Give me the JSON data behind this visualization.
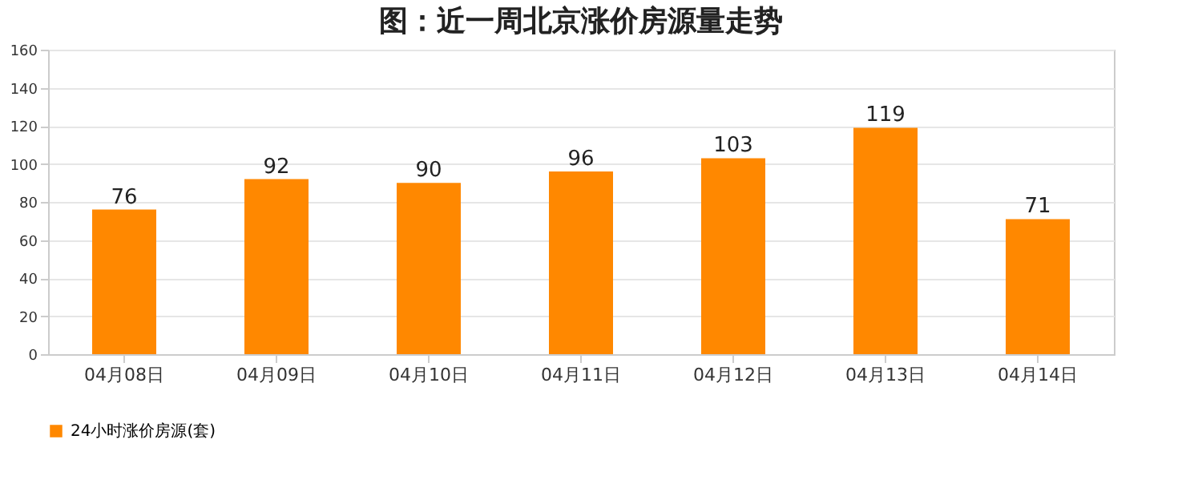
{
  "chart_data": {
    "type": "bar",
    "title": "图：近一周北京涨价房源量走势",
    "categories": [
      "04月08日",
      "04月09日",
      "04月10日",
      "04月11日",
      "04月12日",
      "04月13日",
      "04月14日"
    ],
    "series": [
      {
        "name": "24小时涨价房源(套)",
        "color": "#ff8800",
        "values": [
          76,
          92,
          90,
          96,
          103,
          119,
          71
        ]
      }
    ],
    "ylim": [
      0,
      160
    ],
    "yticks": [
      0,
      20,
      40,
      60,
      80,
      100,
      120,
      140,
      160
    ],
    "grid": "y",
    "legend": "bottom",
    "data_labels": true
  }
}
